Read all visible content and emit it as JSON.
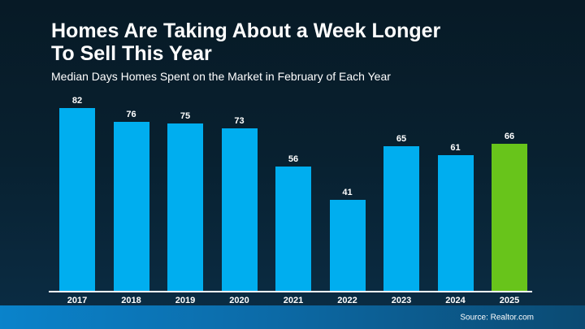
{
  "header": {
    "title_line1": "Homes Are Taking About a Week Longer",
    "title_line2": "To Sell This Year",
    "subtitle": "Median Days Homes Spent on the Market in February of Each Year"
  },
  "chart_data": {
    "type": "bar",
    "title": "Homes Are Taking About a Week Longer To Sell This Year",
    "subtitle": "Median Days Homes Spent on the Market in February of Each Year",
    "categories": [
      "2017",
      "2018",
      "2019",
      "2020",
      "2021",
      "2022",
      "2023",
      "2024",
      "2025"
    ],
    "values": [
      82,
      76,
      75,
      73,
      56,
      41,
      65,
      61,
      66
    ],
    "xlabel": "",
    "ylabel": "",
    "ylim": [
      0,
      90
    ],
    "grid": false,
    "legend": false,
    "value_labels_shown": true,
    "bar_color": "#00aeef",
    "highlight": {
      "index": 8,
      "color": "#68c41b"
    }
  },
  "footer": {
    "source": "Source: Realtor.com"
  },
  "colors": {
    "background_top": "#071a26",
    "background_bottom": "#0b2d45",
    "bar_blue": "#00aeef",
    "bar_green": "#68c41b",
    "footer_gradient_left": "#0a83cb",
    "footer_gradient_right": "#0b4a72",
    "axis_line": "#ffffff",
    "text": "#ffffff"
  }
}
